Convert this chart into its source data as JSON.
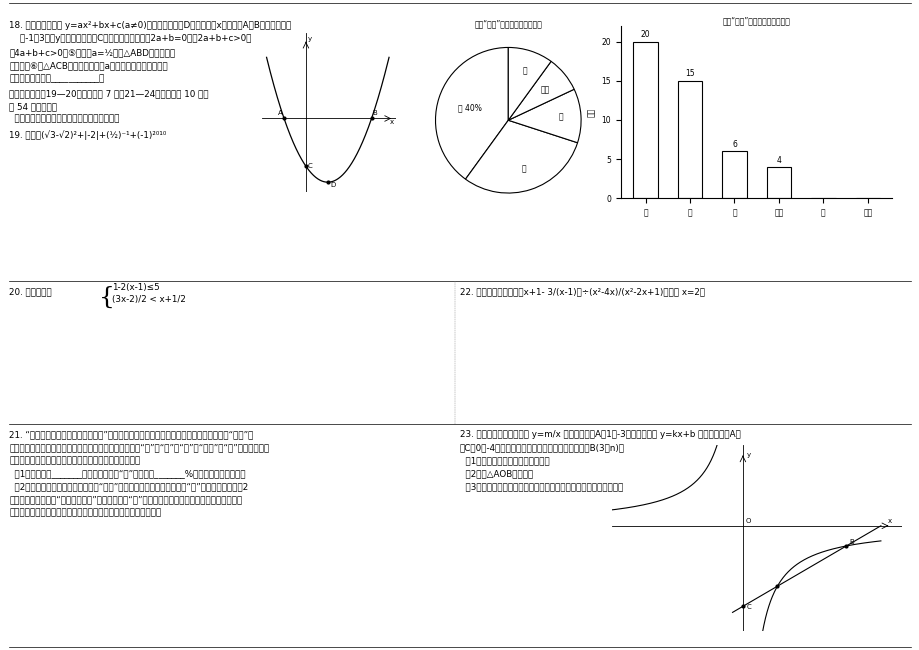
{
  "page_bg": "#ffffff",
  "bar_title": "全班“创模”答卷成绩条形统计图",
  "bar_categories": [
    "优",
    "良",
    "中",
    "及格",
    "差",
    "等级"
  ],
  "bar_values": [
    20,
    15,
    6,
    4,
    0,
    0
  ],
  "bar_ylabel": "人数",
  "bar_ylim": [
    0,
    22
  ],
  "bar_yticks": [
    0,
    5,
    10,
    15,
    20
  ],
  "pie_title": "全班“创模”答卷成绩扇形统计图",
  "pie_sizes": [
    40,
    30,
    12,
    8,
    10
  ],
  "pie_labels": [
    "优 40%",
    "良",
    "中",
    "及格",
    "差"
  ],
  "q18_l1": "18. 如图，二次函数 y=ax²+bx+c(a≠0)，图象的顶点为D，其图象与x轴的交点A、B的横坐标分别",
  "q18_l2": "    为-1、3，与y轴负半轴交于点C。下面四个结论：\u00012a+b=0；\u00022a+b+c>0；",
  "q18_l3": "\u00034a+b+c>0；⑤只有当a=½时，△ABD是等腰直角",
  "q18_l4": "三角形；⑥使△ACB为等腰三角形的a的値可以有三个。那么，",
  "q18_l5": "其中正确的结论是___________。",
  "s3_l1": "三、解答题：（19—20题，每小题 7 分，21—24题，每小题 10 分，",
  "s3_l2": "共 54 分）解答时",
  "s3_l3": "  小题必须给出必要的演算过程或者推理步骤。",
  "q19": "19. 计算：(√3-√2)²+|-2|+(½)⁻¹+(-1)²⁰¹⁰",
  "q20_label": "20. 解不等式组",
  "q20_sys1": "1-2(x-1)≤5",
  "q20_sys2": "(3x-2)/2 < x+1/2",
  "q21_l1": "21. “创建环保模范镇，共享绿色双桂”，双桂镇政府决定在中学某年级中随机流取某个班级“创模”知",
  "q21_l2": "识的了解情况进行问卷调查，然后根据该班级答卷成绩按“优”、“良”、“中”、“及格”、“差”五个等级进行",
  "q21_l3": "分析，并制作了两幅不完整的扇形统计图和条形统计图。",
  "q21_l4": "  （1）该班共有_______人，其中成绩得“差”的人数占_______%。并补全条形统计图；",
  "q21_l5": "  （2）为了让更多的人了解和参与到“创模”活动中去，学校决定从成绩得“差”的所有同学中选折2",
  "q21_l6": "名，参加政府组织的“创模知识讲座”，其中成绩得“差”的同学中有小明和小丽。请用列表或面积状",
  "q21_l7": "图的方法，求所选两位同学恰好是小明和小丽参加此讲座的概率。",
  "q22_l1": "22. 先化简，再求値：（x+1- 3/(x-1)）÷(x²-4x)/(x²-2x+1)，其中 x=2；",
  "q23_l1": "23. 如图，已知反比例函数 y=m/x 的图象经过点A（1，-3），一次函数 y=kx+b 的图象经过点A与",
  "q23_l2": "点C（0，-4），且与反比例函数的图象相交于另一点B(3，n)。",
  "q23_l3": "  （1）试确定这两个函数的解析式；",
  "q23_l4": "  （2）求△AOB的面积；",
  "q23_l5": "  （3）直接写出反比例函数数小于一次函数数时自变量的取値范围。"
}
